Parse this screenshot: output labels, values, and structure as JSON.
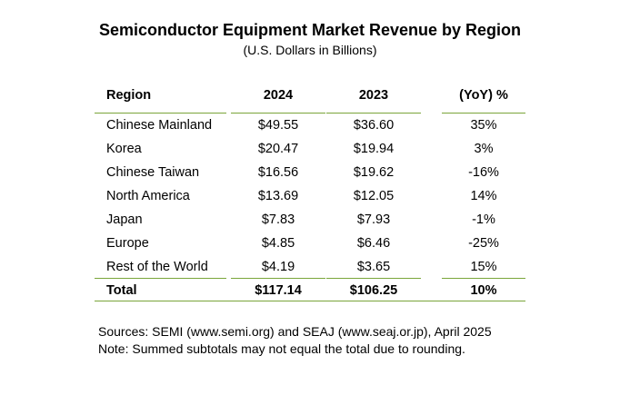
{
  "title": "Semiconductor Equipment Market Revenue by Region",
  "subtitle": "(U.S. Dollars in Billions)",
  "table": {
    "headers": [
      "Region",
      "2024",
      "2023",
      "(YoY) %"
    ],
    "rows": [
      [
        "Chinese Mainland",
        "$49.55",
        "$36.60",
        "35%"
      ],
      [
        "Korea",
        "$20.47",
        "$19.94",
        "3%"
      ],
      [
        "Chinese Taiwan",
        "$16.56",
        "$19.62",
        "-16%"
      ],
      [
        "North America",
        "$13.69",
        "$12.05",
        "14%"
      ],
      [
        "Japan",
        "$7.83",
        "$7.93",
        "-1%"
      ],
      [
        "Europe",
        "$4.85",
        "$6.46",
        "-25%"
      ],
      [
        "Rest of the World",
        "$4.19",
        "$3.65",
        "15%"
      ]
    ],
    "total": [
      "Total",
      "$117.14",
      "$106.25",
      "10%"
    ]
  },
  "notes": {
    "sources": "Sources: SEMI (www.semi.org) and SEAJ (www.seaj.or.jp), April 2025",
    "note": "Note: Summed subtotals may not equal the total due to rounding."
  },
  "colors": {
    "rule": "#7aa53a"
  }
}
